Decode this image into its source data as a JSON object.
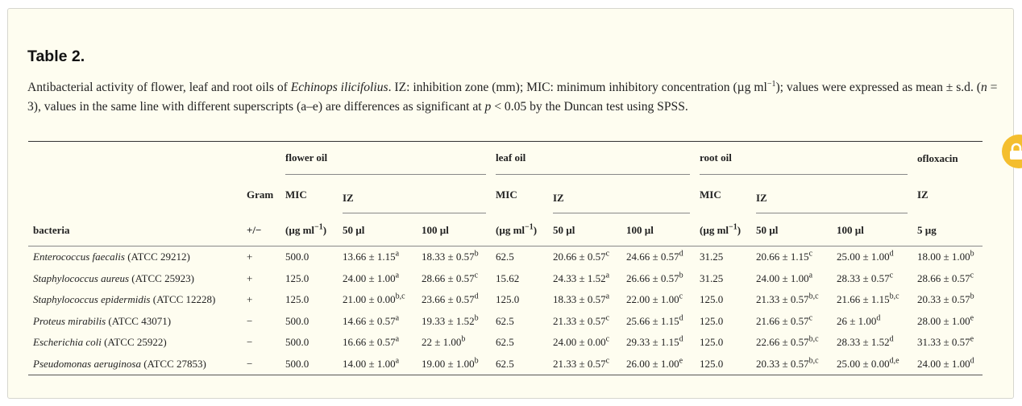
{
  "title": "Table 2.",
  "caption": {
    "p1": "Antibacterial activity of flower, leaf and root oils of ",
    "species": "Echinops ilicifolius",
    "p2": ". IZ: inhibition zone (mm); MIC: minimum inhibitory concentration (µg ml",
    "p2sup": "−1",
    "p3": "); values were expressed as mean ± s.d. (",
    "n_var": "n",
    "p4": " = 3), values in the same line with different superscripts (a–e) are differences as significant at ",
    "p_var": "p",
    "p5": " < 0.05 by the Duncan test using SPSS."
  },
  "header": {
    "flower_oil": "flower oil",
    "leaf_oil": "leaf oil",
    "root_oil": "root oil",
    "ofloxacin": "ofloxacin",
    "gram": "Gram",
    "mic": "MIC",
    "iz": "IZ",
    "bacteria": "bacteria",
    "gram_sign": "+/−",
    "mic_unit": "(µg ml",
    "mic_unit_sup": "−1",
    "mic_unit_close": ")",
    "d50": "50 µl",
    "d100": "100 µl",
    "d5": "5 µg"
  },
  "rows": [
    {
      "genus": "Enterococcus faecalis",
      "strain": " (ATCC 29212)",
      "gram": "+",
      "fm": "500.0",
      "f50": "13.66 ± 1.15",
      "f50s": "a",
      "f100": "18.33 ± 0.57",
      "f100s": "b",
      "lm": "62.5",
      "l50": "20.66 ± 0.57",
      "l50s": "c",
      "l100": "24.66 ± 0.57",
      "l100s": "d",
      "rm": "31.25",
      "r50": "20.66 ± 1.15",
      "r50s": "c",
      "r100": "25.00 ± 1.00",
      "r100s": "d",
      "o5": "18.00 ± 1.00",
      "o5s": "b"
    },
    {
      "genus": "Staphylococcus aureus",
      "strain": " (ATCC 25923)",
      "gram": "+",
      "fm": "125.0",
      "f50": "24.00 ± 1.00",
      "f50s": "a",
      "f100": "28.66 ± 0.57",
      "f100s": "c",
      "lm": "15.62",
      "l50": "24.33 ± 1.52",
      "l50s": "a",
      "l100": "26.66 ± 0.57",
      "l100s": "b",
      "rm": "31.25",
      "r50": "24.00 ± 1.00",
      "r50s": "a",
      "r100": "28.33 ± 0.57",
      "r100s": "c",
      "o5": "28.66 ± 0.57",
      "o5s": "c"
    },
    {
      "genus": "Staphylococcus epidermidis",
      "strain": " (ATCC 12228)",
      "gram": "+",
      "fm": "125.0",
      "f50": "21.00 ± 0.00",
      "f50s": "b,c",
      "f100": "23.66 ± 0.57",
      "f100s": "d",
      "lm": "125.0",
      "l50": "18.33 ± 0.57",
      "l50s": "a",
      "l100": "22.00 ± 1.00",
      "l100s": "c",
      "rm": "125.0",
      "r50": "21.33 ± 0.57",
      "r50s": "b,c",
      "r100": "21.66 ± 1.15",
      "r100s": "b,c",
      "o5": "20.33 ± 0.57",
      "o5s": "b"
    },
    {
      "genus": "Proteus mirabilis",
      "strain": " (ATCC 43071)",
      "gram": "−",
      "fm": "500.0",
      "f50": "14.66 ± 0.57",
      "f50s": "a",
      "f100": "19.33 ± 1.52",
      "f100s": "b",
      "lm": "62.5",
      "l50": "21.33 ± 0.57",
      "l50s": "c",
      "l100": "25.66 ± 1.15",
      "l100s": "d",
      "rm": "125.0",
      "r50": "21.66 ± 0.57",
      "r50s": "c",
      "r100": "26 ± 1.00",
      "r100s": "d",
      "o5": "28.00 ± 1.00",
      "o5s": "e"
    },
    {
      "genus": "Escherichia coli",
      "strain": " (ATCC 25922)",
      "gram": "−",
      "fm": "500.0",
      "f50": "16.66 ± 0.57",
      "f50s": "a",
      "f100": "22 ± 1.00",
      "f100s": "b",
      "lm": "62.5",
      "l50": "24.00 ± 0.00",
      "l50s": "c",
      "l100": "29.33 ± 1.15",
      "l100s": "d",
      "rm": "125.0",
      "r50": "22.66 ± 0.57",
      "r50s": "b,c",
      "r100": "28.33 ± 1.52",
      "r100s": "d",
      "o5": "31.33 ± 0.57",
      "o5s": "e"
    },
    {
      "genus": "Pseudomonas aeruginosa",
      "strain": " (ATCC 27853)",
      "gram": "−",
      "fm": "500.0",
      "f50": "14.00 ± 1.00",
      "f50s": "a",
      "f100": "19.00 ± 1.00",
      "f100s": "b",
      "lm": "62.5",
      "l50": "21.33 ± 0.57",
      "l50s": "c",
      "l100": "26.00 ± 1.00",
      "l100s": "e",
      "rm": "125.0",
      "r50": "20.33 ± 0.57",
      "r50s": "b,c",
      "r100": "25.00 ± 0.00",
      "r100s": "d,e",
      "o5": "24.00 ± 1.00",
      "o5s": "d"
    }
  ],
  "icons": {
    "side_button": "lock-icon"
  },
  "colors": {
    "panel_bg": "#fefdf0",
    "lock_bg": "#f4be2e"
  }
}
